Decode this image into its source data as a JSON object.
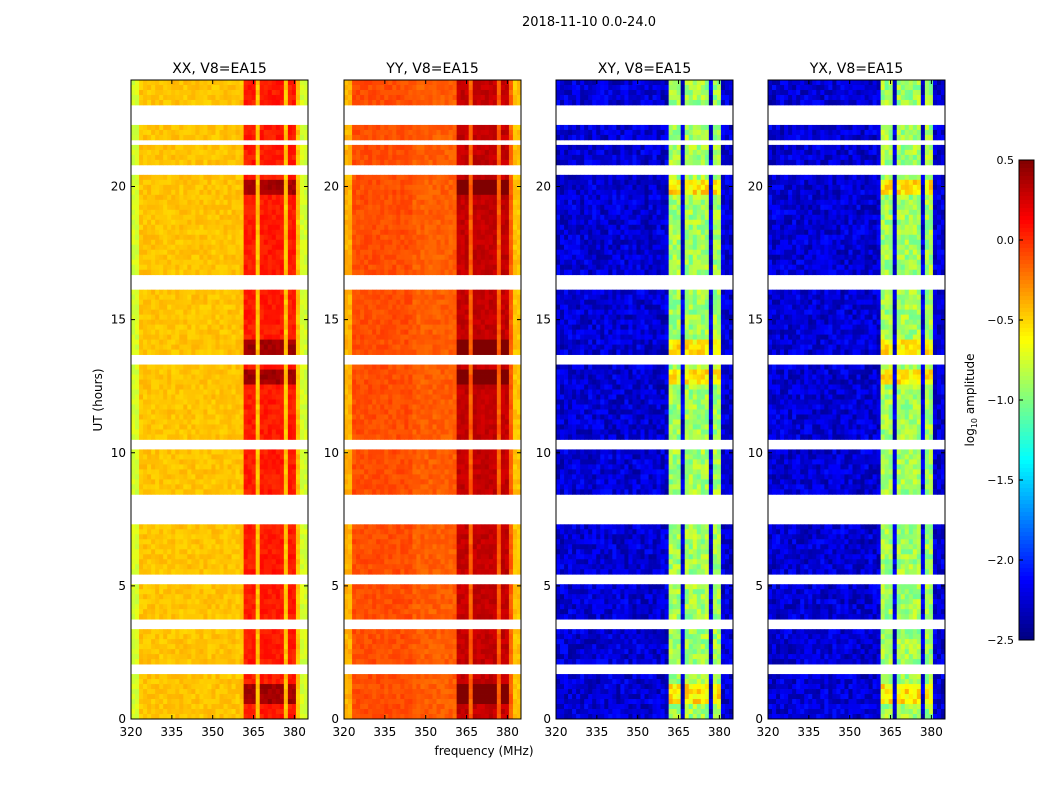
{
  "chart_data": {
    "type": "heatmap",
    "suptitle": "2018-11-10 0.0-24.0",
    "xlabel": "frequency (MHz)",
    "ylabel": "UT (hours)",
    "xlim": [
      320,
      385
    ],
    "ylim": [
      0,
      24
    ],
    "xticks": [
      "320",
      "335",
      "350",
      "365",
      "380"
    ],
    "xtick_values": [
      320,
      335,
      350,
      365,
      380
    ],
    "yticks": [
      "0",
      "5",
      "10",
      "15",
      "20"
    ],
    "ytick_values": [
      0,
      5,
      10,
      15,
      20
    ],
    "panels": [
      {
        "title": "XX, V8=EA15",
        "base_level": -0.45,
        "rfi_level": 0.05
      },
      {
        "title": "YY, V8=EA15",
        "base_level": -0.15,
        "rfi_level": 0.3
      },
      {
        "title": "XY, V8=EA15",
        "base_level": -2.25,
        "rfi_level": -0.9
      },
      {
        "title": "YX, V8=EA15",
        "base_level": -2.25,
        "rfi_level": -0.9
      }
    ],
    "rfi_channel_bands_mhz": [
      [
        362,
        366
      ],
      [
        367,
        371
      ],
      [
        372,
        376
      ],
      [
        377,
        381
      ]
    ],
    "enhanced_time_intervals_hours": [
      [
        0.5,
        1.3
      ],
      [
        13.5,
        14.3
      ],
      [
        12.6,
        13.2
      ],
      [
        19.6,
        20.3
      ]
    ],
    "flagged_time_gaps_hours": [
      [
        22.4,
        23.1
      ],
      [
        21.5,
        21.7
      ],
      [
        20.5,
        20.8
      ],
      [
        16.2,
        16.6
      ],
      [
        13.4,
        13.6
      ],
      [
        10.2,
        10.5
      ],
      [
        7.4,
        8.4
      ],
      [
        5.1,
        5.4
      ],
      [
        3.4,
        3.7
      ],
      [
        1.6,
        2.0
      ]
    ],
    "colorbar": {
      "label": "log10 amplitude",
      "label_base": "log",
      "label_sub": "10",
      "label_rest": " amplitude",
      "colormap": "jet",
      "range": [
        -2.5,
        0.5
      ],
      "ticks": [
        "0.5",
        "0.0",
        "−0.5",
        "−1.0",
        "−1.5",
        "−2.0",
        "−2.5"
      ],
      "tick_values": [
        0.5,
        0.0,
        -0.5,
        -1.0,
        -1.5,
        -2.0,
        -2.5
      ]
    }
  }
}
